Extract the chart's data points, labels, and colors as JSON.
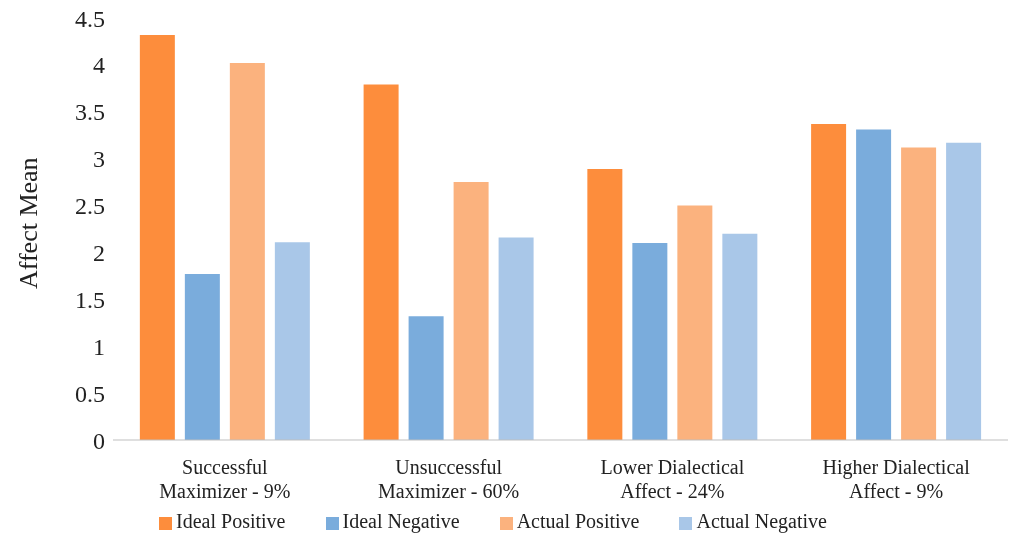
{
  "chart_data": {
    "type": "bar",
    "ylabel": "Affect Mean",
    "categories": [
      "Successful Maximizer - 9%",
      "Unsuccessful Maximizer - 60%",
      "Lower Dialectical Affect - 24%",
      "Higher Dialectical Affect - 9%"
    ],
    "series": [
      {
        "name": "Ideal Positive",
        "color": "#fd8d3c",
        "values": [
          4.32,
          3.79,
          2.89,
          3.37
        ]
      },
      {
        "name": "Ideal Negative",
        "color": "#7aacdc",
        "values": [
          1.77,
          1.32,
          2.1,
          3.31
        ]
      },
      {
        "name": "Actual Positive",
        "color": "#fbb27e",
        "values": [
          4.02,
          2.75,
          2.5,
          3.12
        ]
      },
      {
        "name": "Actual Negative",
        "color": "#a9c7e8",
        "values": [
          2.11,
          2.16,
          2.2,
          3.17
        ]
      }
    ],
    "ylim": [
      0,
      4.5
    ],
    "yticks": [
      0,
      0.5,
      1,
      1.5,
      2,
      2.5,
      3,
      3.5,
      4,
      4.5
    ],
    "grid": false,
    "legend": "bottom"
  }
}
